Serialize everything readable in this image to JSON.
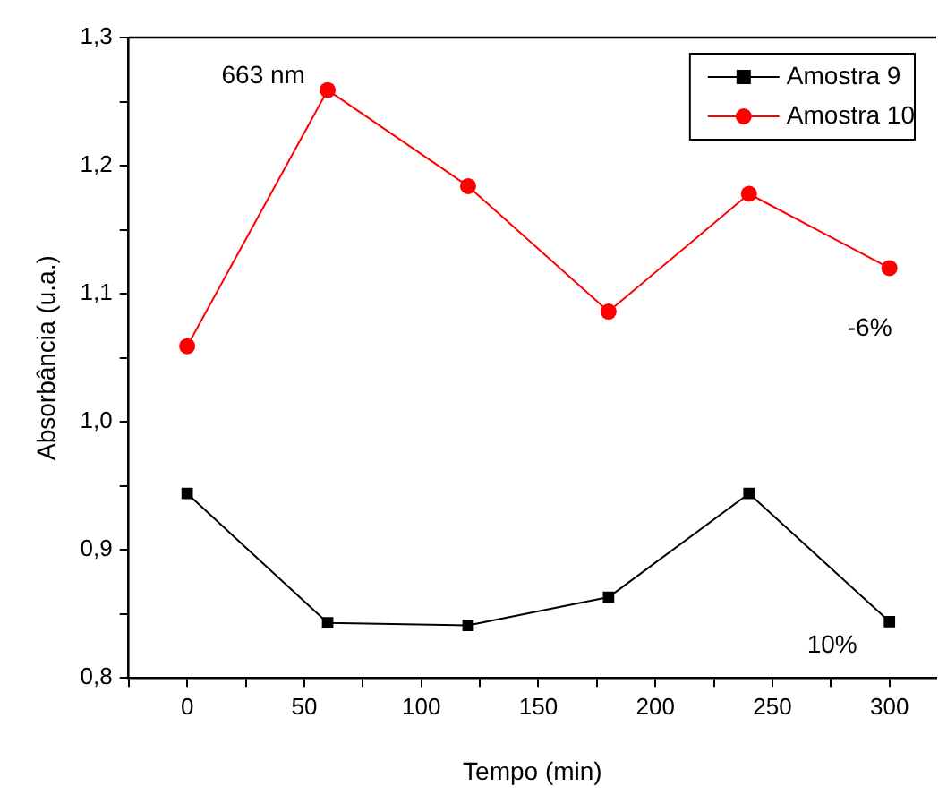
{
  "chart_data": {
    "type": "line",
    "xlabel": "Tempo (min)",
    "ylabel": "Absorbância (u.a.)",
    "x": [
      0,
      60,
      120,
      180,
      240,
      300
    ],
    "series": [
      {
        "name": "Amostra 9",
        "color": "#000000",
        "marker": "square",
        "values": [
          0.944,
          0.843,
          0.841,
          0.863,
          0.944,
          0.844
        ]
      },
      {
        "name": "Amostra 10",
        "color": "#ff0000",
        "marker": "circle",
        "values": [
          1.059,
          1.259,
          1.184,
          1.086,
          1.178,
          1.12
        ]
      }
    ],
    "xlim": [
      -25,
      320
    ],
    "xticks": [
      {
        "value": -25,
        "label": null
      },
      0,
      {
        "value": 25,
        "label": null
      },
      50,
      {
        "value": 75,
        "label": null
      },
      100,
      {
        "value": 125,
        "label": null
      },
      150,
      {
        "value": 175,
        "label": null
      },
      200,
      {
        "value": 225,
        "label": null
      },
      250,
      {
        "value": 275,
        "label": null
      },
      300
    ],
    "ylim": [
      0.8,
      1.3
    ],
    "yticks": [
      {
        "value": 0.8,
        "label": "0,8"
      },
      {
        "value": 0.85,
        "label": null
      },
      {
        "value": 0.9,
        "label": "0,9"
      },
      {
        "value": 0.95,
        "label": null
      },
      {
        "value": 1.0,
        "label": "1,0"
      },
      {
        "value": 1.05,
        "label": null
      },
      {
        "value": 1.1,
        "label": "1,1"
      },
      {
        "value": 1.15,
        "label": null
      },
      {
        "value": 1.2,
        "label": "1,2"
      },
      {
        "value": 1.25,
        "label": null
      },
      {
        "value": 1.3,
        "label": "1,3"
      }
    ],
    "grid": false,
    "legend": "top right",
    "line_style": "solid",
    "annotations": [
      "663 nm",
      "-6%",
      "10%"
    ]
  }
}
